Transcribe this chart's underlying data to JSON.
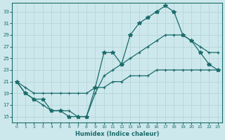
{
  "xlabel": "Humidex (Indice chaleur)",
  "bg_color": "#cde8ec",
  "line_color": "#1a6b6b",
  "grid_color": "#b8d8dc",
  "xlim": [
    -0.5,
    23.5
  ],
  "ylim": [
    14.0,
    34.5
  ],
  "yticks": [
    15,
    17,
    19,
    21,
    23,
    25,
    27,
    29,
    31,
    33
  ],
  "xticks": [
    0,
    1,
    2,
    3,
    4,
    5,
    6,
    7,
    8,
    9,
    10,
    11,
    12,
    13,
    14,
    15,
    16,
    17,
    18,
    19,
    20,
    21,
    22,
    23
  ],
  "line1_x": [
    0,
    1,
    2,
    3,
    4,
    5,
    6,
    7,
    8,
    9,
    10,
    11,
    12,
    13,
    14,
    15,
    16,
    17,
    18,
    19,
    20,
    21,
    22,
    23
  ],
  "line1_y": [
    21,
    19,
    18,
    18,
    16,
    16,
    15,
    15,
    15,
    20,
    26,
    26,
    24,
    29,
    31,
    32,
    33,
    34,
    33,
    29,
    28,
    26,
    24,
    23
  ],
  "line2_x": [
    0,
    1,
    2,
    3,
    4,
    5,
    6,
    7,
    8,
    9,
    10,
    11,
    12,
    13,
    14,
    15,
    16,
    17,
    18,
    19,
    20,
    21,
    22,
    23
  ],
  "line2_y": [
    21,
    20,
    19,
    19,
    19,
    19,
    19,
    19,
    19,
    20,
    20,
    21,
    21,
    22,
    22,
    22,
    23,
    23,
    23,
    23,
    23,
    23,
    23,
    23
  ],
  "line3_x": [
    0,
    1,
    2,
    3,
    4,
    5,
    6,
    7,
    8,
    9,
    10,
    11,
    12,
    13,
    14,
    15,
    16,
    17,
    18,
    19,
    20,
    21,
    22,
    23
  ],
  "line3_y": [
    21,
    19,
    18,
    17,
    16,
    16,
    16,
    15,
    15,
    19,
    22,
    23,
    24,
    25,
    26,
    27,
    28,
    29,
    29,
    29,
    28,
    27,
    26,
    26
  ]
}
